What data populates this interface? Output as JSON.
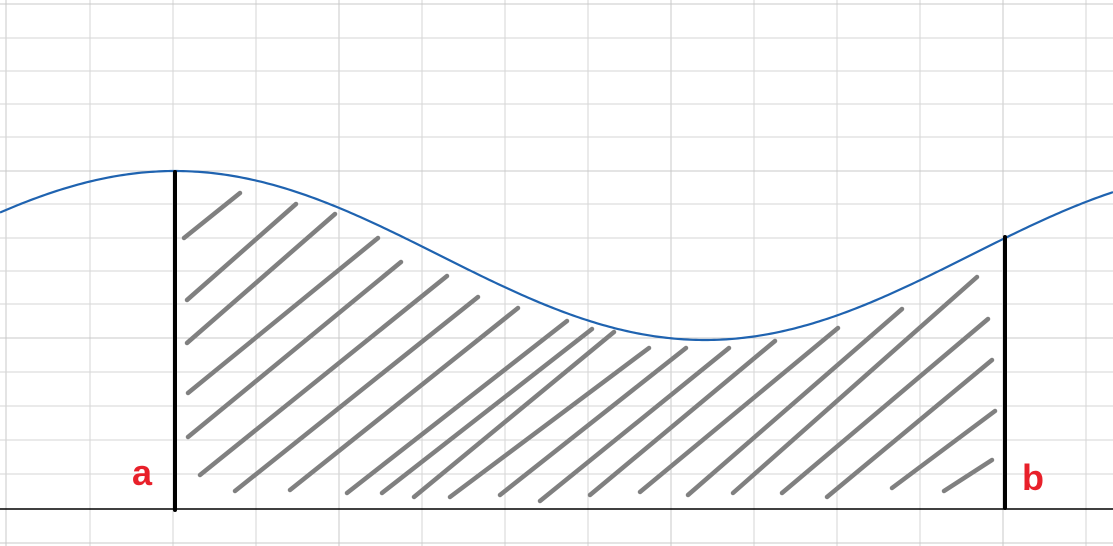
{
  "diagram": {
    "type": "area-under-curve",
    "lower_bound_label": "a",
    "upper_bound_label": "b",
    "colors": {
      "curve": "#1f63b0",
      "hatch": "#808080",
      "bounds": "#000000",
      "labels": "#e8202a",
      "grid": "#d6d6d6",
      "axis": "#000000"
    }
  }
}
